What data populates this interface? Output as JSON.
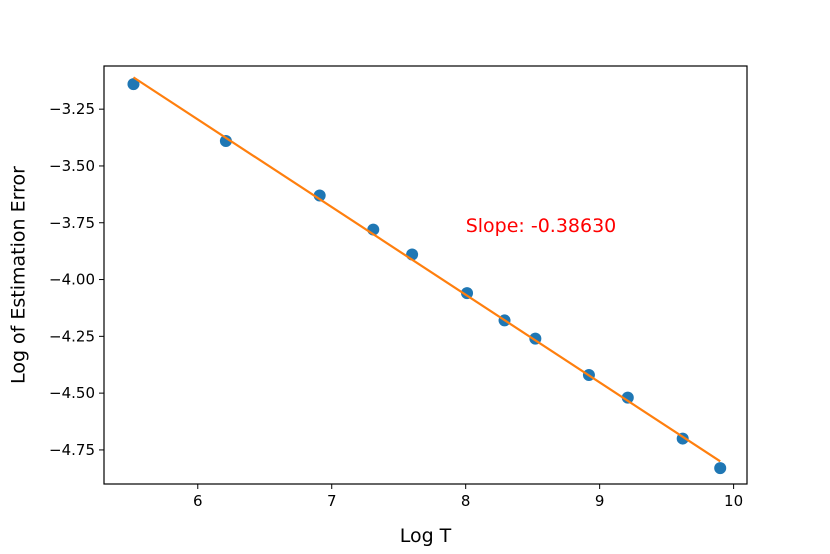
{
  "chart_data": {
    "type": "scatter",
    "title": "",
    "xlabel": "Log T",
    "ylabel": "Log of Estimation Error",
    "xlim": [
      5.3,
      10.1
    ],
    "ylim": [
      -4.9,
      -3.06
    ],
    "xticks": [
      6,
      7,
      8,
      9,
      10
    ],
    "yticks": [
      -3.25,
      -3.5,
      -3.75,
      -4.0,
      -4.25,
      -4.5,
      -4.75
    ],
    "xtick_labels": [
      "6",
      "7",
      "8",
      "9",
      "10"
    ],
    "ytick_labels": [
      "−3.25",
      "−3.50",
      "−3.75",
      "−4.00",
      "−4.25",
      "−4.50",
      "−4.75"
    ],
    "grid": false,
    "series": [
      {
        "kind": "scatter",
        "color": "#1f77b4",
        "x": [
          5.52,
          6.21,
          6.91,
          7.31,
          7.6,
          8.01,
          8.29,
          8.52,
          8.92,
          9.21,
          9.62,
          9.9
        ],
        "y": [
          -3.14,
          -3.39,
          -3.63,
          -3.78,
          -3.89,
          -4.06,
          -4.18,
          -4.26,
          -4.42,
          -4.52,
          -4.7,
          -4.83
        ]
      },
      {
        "kind": "line",
        "color": "#ff7f0e",
        "x": [
          5.52,
          9.9
        ],
        "y": [
          -3.11,
          -4.8
        ]
      }
    ],
    "annotations": [
      {
        "text": "Slope: -0.38630",
        "x": 8.0,
        "y": -3.79,
        "color": "#ff0000"
      }
    ]
  }
}
